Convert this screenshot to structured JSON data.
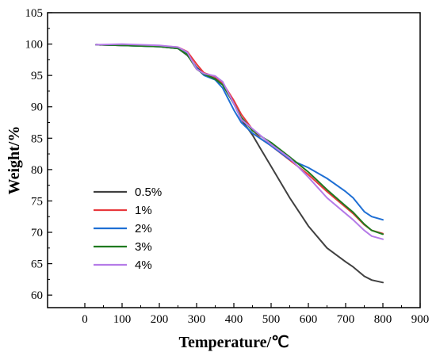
{
  "chart_data": {
    "type": "line",
    "xlabel": "Temperature/℃",
    "ylabel": "Weight/%",
    "xlim": [
      -100,
      900
    ],
    "ylim": [
      58,
      105
    ],
    "xticks": [
      0,
      100,
      200,
      300,
      400,
      500,
      600,
      700,
      800,
      900
    ],
    "yticks": [
      60,
      65,
      70,
      75,
      80,
      85,
      90,
      95,
      100,
      105
    ],
    "legend_position": "lower-left",
    "grid": false,
    "series": [
      {
        "name": "0.5%",
        "color": "#404040",
        "x": [
          30,
          100,
          200,
          250,
          275,
          300,
          320,
          350,
          370,
          400,
          420,
          450,
          470,
          500,
          550,
          600,
          650,
          700,
          720,
          750,
          770,
          800
        ],
        "y": [
          99.9,
          99.8,
          99.6,
          99.3,
          98.2,
          96.3,
          95.2,
          94.5,
          93.5,
          90.5,
          88.0,
          85.5,
          83.5,
          80.5,
          75.5,
          71.0,
          67.5,
          65.3,
          64.5,
          63.0,
          62.4,
          62.0
        ]
      },
      {
        "name": "1%",
        "color": "#e8383d",
        "x": [
          30,
          100,
          200,
          250,
          275,
          300,
          320,
          350,
          370,
          400,
          420,
          450,
          470,
          500,
          550,
          600,
          650,
          700,
          720,
          750,
          770,
          800
        ],
        "y": [
          99.9,
          99.8,
          99.7,
          99.5,
          98.8,
          96.8,
          95.4,
          94.8,
          93.8,
          91.0,
          88.8,
          86.4,
          85.0,
          83.8,
          81.5,
          79.2,
          76.5,
          74.0,
          73.0,
          71.2,
          70.3,
          69.8
        ]
      },
      {
        "name": "2%",
        "color": "#1f6fd4",
        "x": [
          30,
          100,
          200,
          250,
          275,
          300,
          320,
          350,
          370,
          400,
          420,
          450,
          470,
          500,
          550,
          600,
          650,
          700,
          720,
          750,
          770,
          800
        ],
        "y": [
          99.9,
          99.8,
          99.6,
          99.3,
          98.4,
          96.2,
          95.0,
          94.3,
          93.0,
          89.5,
          87.5,
          85.8,
          85.0,
          83.8,
          81.6,
          80.3,
          78.6,
          76.5,
          75.5,
          73.3,
          72.5,
          72.0
        ]
      },
      {
        "name": "3%",
        "color": "#1f7a1f",
        "x": [
          30,
          100,
          200,
          250,
          275,
          300,
          320,
          350,
          370,
          400,
          420,
          450,
          470,
          500,
          550,
          600,
          650,
          700,
          720,
          750,
          770,
          800
        ],
        "y": [
          99.9,
          99.8,
          99.6,
          99.3,
          98.3,
          96.0,
          95.2,
          94.4,
          93.5,
          90.5,
          88.3,
          86.2,
          85.4,
          84.3,
          82.0,
          79.6,
          76.8,
          74.2,
          73.2,
          71.3,
          70.3,
          69.7
        ]
      },
      {
        "name": "4%",
        "color": "#b57be8",
        "x": [
          30,
          100,
          200,
          250,
          275,
          300,
          320,
          350,
          370,
          400,
          420,
          450,
          470,
          500,
          550,
          600,
          650,
          700,
          720,
          750,
          770,
          800
        ],
        "y": [
          99.9,
          100.0,
          99.8,
          99.5,
          98.7,
          96.0,
          95.3,
          94.9,
          94.0,
          90.5,
          88.0,
          86.5,
          85.5,
          84.0,
          81.8,
          78.8,
          75.5,
          73.0,
          72.0,
          70.3,
          69.4,
          68.9
        ]
      }
    ]
  }
}
